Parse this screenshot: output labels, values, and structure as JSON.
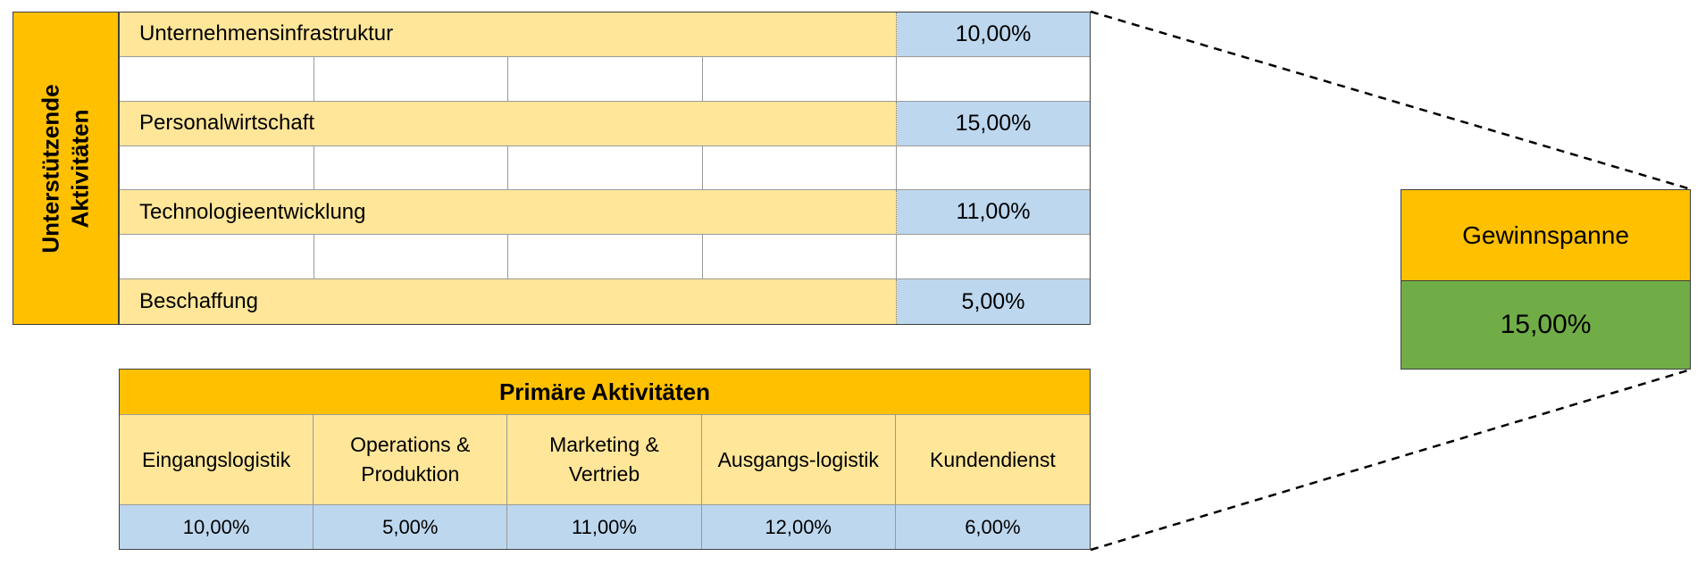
{
  "support_label": [
    "Unterstützende",
    "Aktivitäten"
  ],
  "support_rows": [
    {
      "label": "Unternehmensinfrastruktur",
      "value": "10,00%"
    },
    {
      "label": "Personalwirtschaft",
      "value": "15,00%"
    },
    {
      "label": "Technologieentwicklung",
      "value": "11,00%"
    },
    {
      "label": "Beschaffung",
      "value": "5,00%"
    }
  ],
  "primary": {
    "title": "Primäre Aktivitäten",
    "columns": [
      {
        "label": "Eingangslogistik",
        "value": "10,00%"
      },
      {
        "label": "Operations & Produktion",
        "value": "5,00%"
      },
      {
        "label": "Marketing & Vertrieb",
        "value": "11,00%"
      },
      {
        "label": "Ausgangs-logistik",
        "value": "12,00%"
      },
      {
        "label": "Kundendienst",
        "value": "6,00%"
      }
    ]
  },
  "margin": {
    "label": "Gewinnspanne",
    "value": "15,00%"
  },
  "colors": {
    "header_orange": "#FFC000",
    "label_yellow": "#FFE699",
    "value_blue": "#BDD7EE",
    "margin_green": "#70AD47"
  }
}
